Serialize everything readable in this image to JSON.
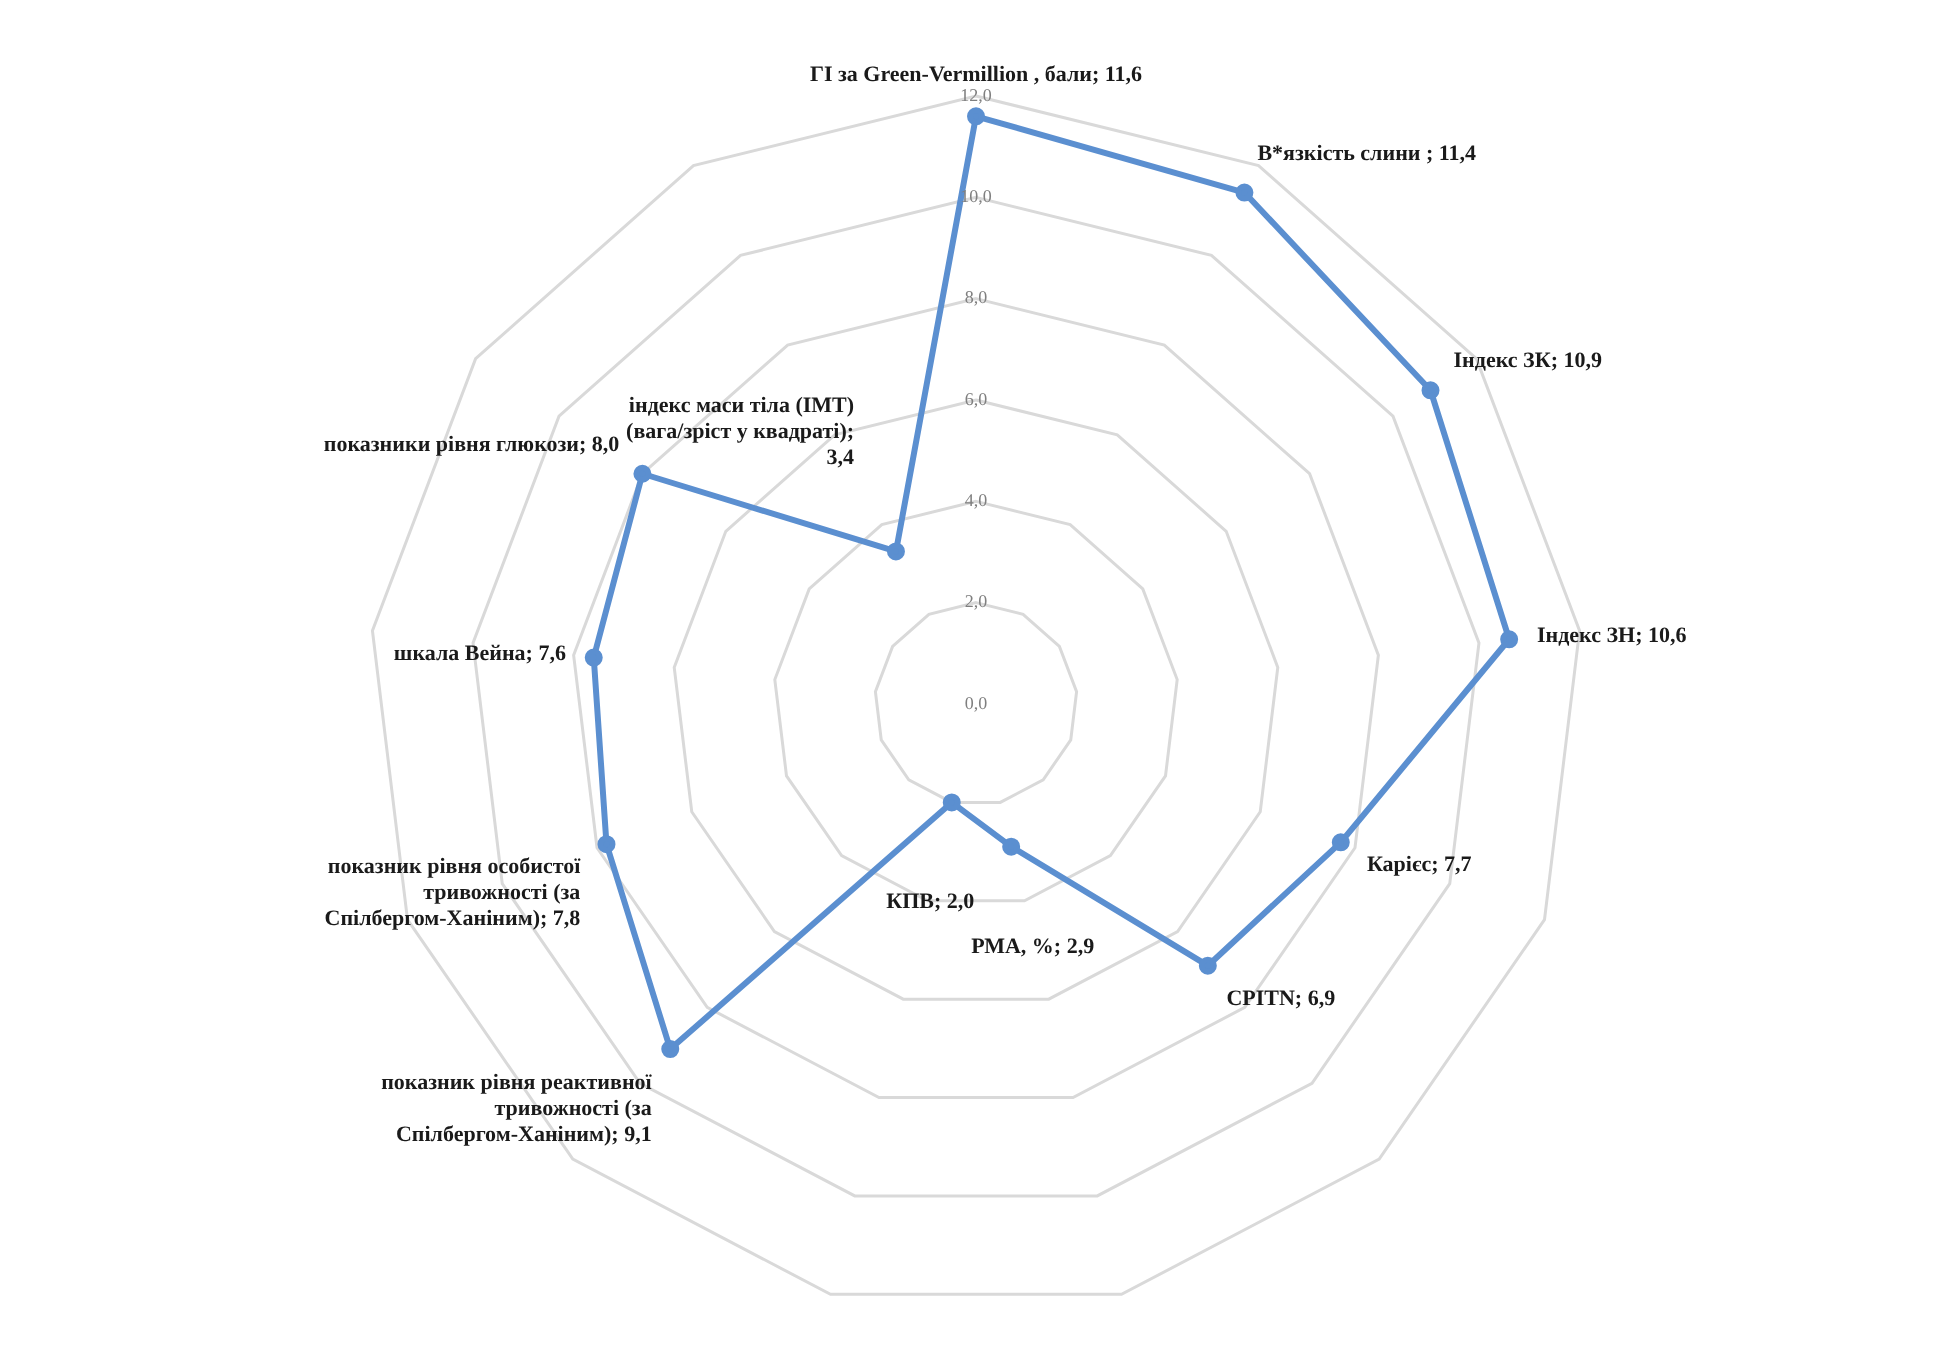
{
  "chart_data": {
    "type": "radar",
    "categories": [
      "ГІ за Green-Vermillion , бали; 11,6",
      "В*язкість слини ; 11,4",
      "Індекс ЗК; 10,9",
      "Індекс ЗН; 10,6",
      "Карієс; 7,7",
      "CPITN; 6,9",
      "РМА, %; 2,9",
      "КПВ; 2,0",
      "показник рівня реактивної тривожності (за Спілбергом-Ханіним); 9,1",
      "показник рівня особистої тривожності (за Спілбергом-Ханіним); 7,8",
      "шкала Вейна; 7,6",
      "показники рівня глюкози; 8,0",
      "індекс маси тіла (ІМТ) (вага/зріст у квадраті); 3,4"
    ],
    "series": [
      {
        "color": "#5b8fd0",
        "values": [
          11.6,
          11.4,
          10.9,
          10.6,
          7.7,
          6.9,
          2.9,
          2.0,
          9.1,
          7.8,
          7.6,
          8.0,
          3.4
        ]
      }
    ],
    "ylim": [
      0,
      12
    ],
    "yticks": [
      {
        "value": 0,
        "label": "0,0"
      },
      {
        "value": 2,
        "label": "2,0"
      },
      {
        "value": 4,
        "label": "4,0"
      },
      {
        "value": 6,
        "label": "6,0"
      },
      {
        "value": 8,
        "label": "8,0"
      },
      {
        "value": 10,
        "label": "10,0"
      },
      {
        "value": 12,
        "label": "12,0"
      }
    ],
    "grid": true,
    "marker": "circle"
  }
}
